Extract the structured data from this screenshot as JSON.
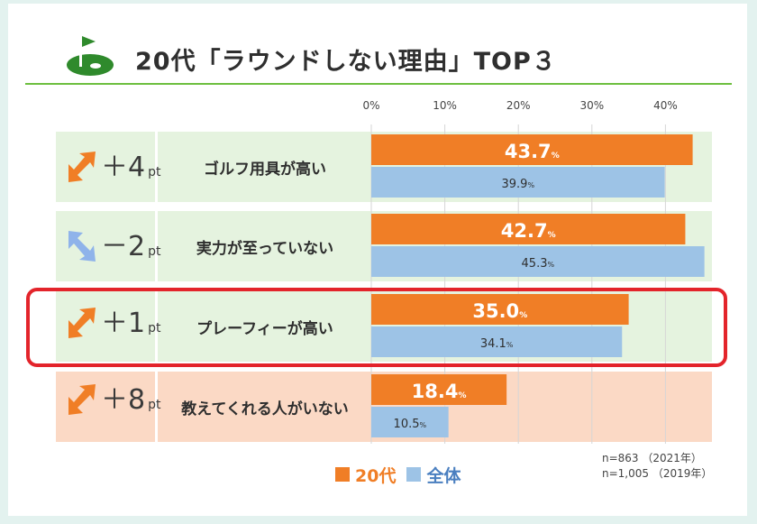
{
  "chart_data": {
    "type": "bar",
    "orientation": "horizontal",
    "title": "20代「ラウンドしない理由」TOP３",
    "categories": [
      "ゴルフ用具が高い",
      "実力が至っていない",
      "プレーフィーが高い",
      "教えてくれる人がいない"
    ],
    "series": [
      {
        "name": "20代",
        "values": [
          43.7,
          42.7,
          35.0,
          18.4
        ],
        "color": "#f07e26"
      },
      {
        "name": "全体",
        "values": [
          39.9,
          45.3,
          34.1,
          10.5
        ],
        "color": "#9dc3e6"
      }
    ],
    "value_labels": {
      "20代": [
        "43.7",
        "42.7",
        "35.0",
        "18.4"
      ],
      "全体": [
        "39.9",
        "45.3",
        "34.1",
        "10.5"
      ]
    },
    "value_unit": "%",
    "x_ticks": [
      "0%",
      "10%",
      "20%",
      "30%",
      "40%"
    ],
    "xlim": [
      0,
      45
    ],
    "differences": [
      {
        "value": "＋4",
        "unit": "pt",
        "direction": "up"
      },
      {
        "value": "－2",
        "unit": "pt",
        "direction": "down"
      },
      {
        "value": "＋1",
        "unit": "pt",
        "direction": "up"
      },
      {
        "value": "＋8",
        "unit": "pt",
        "direction": "up"
      }
    ],
    "highlighted_category": "プレーフィーが高い",
    "legend": [
      "20代",
      "全体"
    ],
    "notes": [
      "n=863 （2021年）",
      "n=1,005 （2019年）"
    ]
  },
  "colors": {
    "orange": "#f07e26",
    "blue": "#9dc3e6",
    "green_band": "#e5f3df",
    "peach_band": "#fbd9c5",
    "highlight": "#e3242b",
    "arrow_down": "#8fb3ea",
    "golf_green": "#2f8a2c"
  }
}
